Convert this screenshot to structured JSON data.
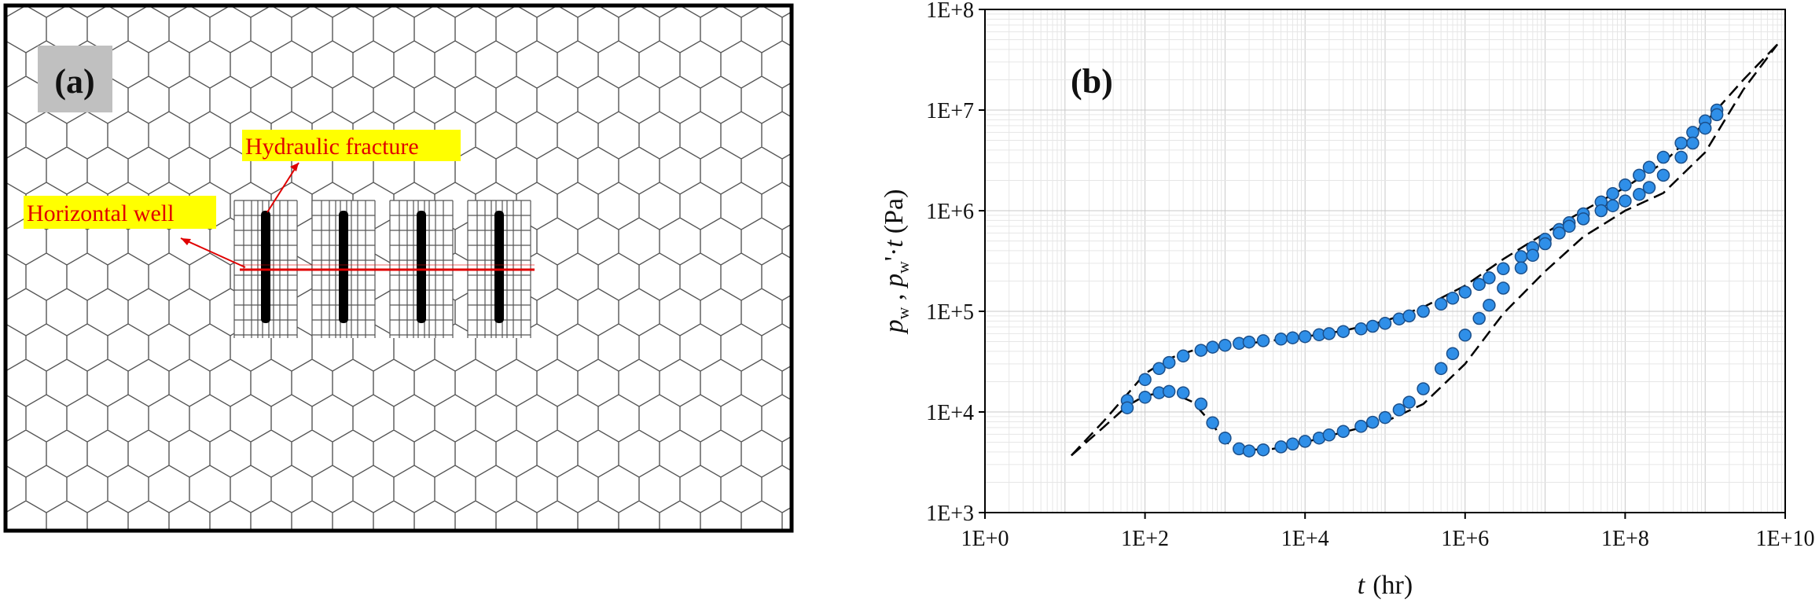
{
  "panel_a": {
    "label": "(a)",
    "annotations": {
      "hydraulic_fracture": "Hydraulic fracture",
      "horizontal_well": "Horizontal well"
    },
    "fracture_count": 4,
    "colors": {
      "annotation": "#e00000",
      "highlight": "#ffff00",
      "mesh": "#555555",
      "label_box": "#c0c0c0"
    }
  },
  "chart_data": {
    "type": "scatter",
    "label": "(b)",
    "title": "",
    "xlabel": {
      "var": "t",
      "unit": "(hr)"
    },
    "ylabel": {
      "p": "p",
      "sub": "w",
      "sep": " , ",
      "prime": "'",
      "dot": "·",
      "t": "t",
      "unit": "(Pa)"
    },
    "xscale": "log",
    "yscale": "log",
    "xlim": [
      1,
      10000000000
    ],
    "ylim": [
      1000,
      100000000
    ],
    "xticks": [
      {
        "value": 1,
        "label": "1E+0"
      },
      {
        "value": 100,
        "label": "1E+2"
      },
      {
        "value": 10000,
        "label": "1E+4"
      },
      {
        "value": 1000000,
        "label": "1E+6"
      },
      {
        "value": 100000000,
        "label": "1E+8"
      },
      {
        "value": 10000000000,
        "label": "1E+10"
      }
    ],
    "yticks": [
      {
        "value": 1000,
        "label": "1E+3"
      },
      {
        "value": 10000,
        "label": "1E+4"
      },
      {
        "value": 100000,
        "label": "1E+5"
      },
      {
        "value": 1000000,
        "label": "1E+6"
      },
      {
        "value": 10000000,
        "label": "1E+7"
      },
      {
        "value": 100000000,
        "label": "1E+8"
      }
    ],
    "grid": true,
    "series": [
      {
        "name": "pressure_model",
        "style": "dashed",
        "color": "#000000",
        "x": [
          12,
          30,
          60,
          100,
          200,
          400,
          1000,
          3000,
          10000,
          30000,
          100000,
          300000,
          1000000,
          3000000,
          10000000,
          30000000,
          100000000,
          300000000,
          1000000000,
          3000000000,
          8000000000
        ],
        "y": [
          3700,
          8000,
          15000,
          24000,
          34000,
          41000,
          45000,
          50000,
          56000,
          64000,
          80000,
          110000,
          180000,
          330000,
          600000,
          1000000,
          1700000,
          3000000,
          7500000,
          20000000,
          45000000
        ]
      },
      {
        "name": "pressure_derivative_model",
        "style": "dashed",
        "color": "#000000",
        "x": [
          12,
          30,
          60,
          100,
          200,
          400,
          700,
          1000,
          2000,
          4000,
          10000,
          30000,
          100000,
          300000,
          1000000,
          3000000,
          10000000,
          30000000,
          100000000,
          300000000,
          1000000000,
          3000000000,
          8000000000
        ],
        "y": [
          3700,
          7000,
          11500,
          14500,
          16000,
          12500,
          7500,
          5000,
          4200,
          4300,
          5000,
          6300,
          8000,
          12000,
          30000,
          95000,
          250000,
          550000,
          1000000,
          1500000,
          3800000,
          16000000,
          45000000
        ]
      },
      {
        "name": "pressure_data",
        "style": "markers",
        "color": "#2f8fe8",
        "x": [
          60,
          100,
          150,
          200,
          300,
          500,
          700,
          1000,
          1500,
          2000,
          3000,
          5000,
          7000,
          10000,
          15000,
          20000,
          30000,
          50000,
          70000,
          100000,
          150000,
          200000,
          300000,
          500000,
          700000,
          1000000,
          1500000,
          2000000,
          3000000,
          5000000,
          7000000,
          10000000,
          15000000,
          20000000,
          30000000,
          50000000,
          70000000,
          100000000,
          150000000,
          200000000,
          300000000,
          500000000,
          700000000,
          1000000000,
          1400000000
        ],
        "y": [
          13000,
          21000,
          27000,
          31000,
          36000,
          41000,
          44000,
          46000,
          48000,
          49500,
          51000,
          53000,
          54500,
          56000,
          58500,
          60000,
          63000,
          67000,
          71000,
          76000,
          84000,
          90000,
          100000,
          118000,
          135000,
          155000,
          185000,
          215000,
          265000,
          350000,
          430000,
          520000,
          650000,
          760000,
          930000,
          1220000,
          1480000,
          1800000,
          2250000,
          2700000,
          3400000,
          4700000,
          6000000,
          7800000,
          10000000
        ]
      },
      {
        "name": "pressure_derivative_data",
        "style": "markers",
        "color": "#2f8fe8",
        "x": [
          60,
          100,
          150,
          200,
          300,
          500,
          700,
          1000,
          1500,
          2000,
          3000,
          5000,
          7000,
          10000,
          15000,
          20000,
          30000,
          50000,
          70000,
          100000,
          150000,
          200000,
          300000,
          500000,
          700000,
          1000000,
          1500000,
          2000000,
          3000000,
          5000000,
          7000000,
          10000000,
          15000000,
          20000000,
          30000000,
          50000000,
          70000000,
          100000000,
          150000000,
          200000000,
          300000000,
          500000000,
          700000000,
          1000000000,
          1400000000
        ],
        "y": [
          11000,
          14000,
          15500,
          16000,
          15500,
          12000,
          7800,
          5500,
          4300,
          4100,
          4200,
          4500,
          4800,
          5100,
          5500,
          5900,
          6400,
          7200,
          7900,
          8800,
          10500,
          12500,
          17000,
          27000,
          38000,
          58000,
          85000,
          115000,
          170000,
          270000,
          360000,
          470000,
          600000,
          700000,
          830000,
          1000000,
          1120000,
          1250000,
          1450000,
          1700000,
          2250000,
          3400000,
          4700000,
          6600000,
          9000000
        ]
      }
    ]
  }
}
